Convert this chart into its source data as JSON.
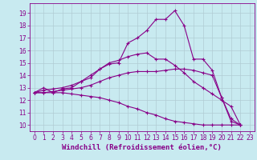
{
  "background_color": "#c8eaf0",
  "grid_color": "#b0ccd4",
  "line_color": "#880088",
  "marker": "+",
  "markersize": 3,
  "linewidth": 0.8,
  "xlabel": "Windchill (Refroidissement éolien,°C)",
  "xlabel_fontsize": 6.5,
  "tick_fontsize": 5.5,
  "xlim": [
    -0.5,
    23.5
  ],
  "ylim": [
    9.5,
    19.8
  ],
  "yticks": [
    10,
    11,
    12,
    13,
    14,
    15,
    16,
    17,
    18,
    19
  ],
  "xticks": [
    0,
    1,
    2,
    3,
    4,
    5,
    6,
    7,
    8,
    9,
    10,
    11,
    12,
    13,
    14,
    15,
    16,
    17,
    18,
    19,
    20,
    21,
    22,
    23
  ],
  "series": [
    [
      12.6,
      13.0,
      12.6,
      12.9,
      13.0,
      13.5,
      13.8,
      14.5,
      14.9,
      15.0,
      16.6,
      17.0,
      17.6,
      18.5,
      18.5,
      19.2,
      18.0,
      15.3,
      15.3,
      14.4,
      12.2,
      10.3,
      10.0
    ],
    [
      12.6,
      12.8,
      12.9,
      13.0,
      13.2,
      13.5,
      14.0,
      14.5,
      15.0,
      15.2,
      15.5,
      15.7,
      15.8,
      15.3,
      15.3,
      14.8,
      14.2,
      13.5,
      13.0,
      12.5,
      12.0,
      11.5,
      10.0
    ],
    [
      12.6,
      12.6,
      12.7,
      12.8,
      12.9,
      13.0,
      13.2,
      13.5,
      13.8,
      14.0,
      14.2,
      14.3,
      14.3,
      14.3,
      14.4,
      14.5,
      14.5,
      14.4,
      14.2,
      14.0,
      12.2,
      10.5,
      10.0
    ],
    [
      12.6,
      12.6,
      12.6,
      12.6,
      12.5,
      12.4,
      12.3,
      12.2,
      12.0,
      11.8,
      11.5,
      11.3,
      11.0,
      10.8,
      10.5,
      10.3,
      10.2,
      10.1,
      10.0,
      10.0,
      10.0,
      10.0,
      10.0
    ]
  ]
}
